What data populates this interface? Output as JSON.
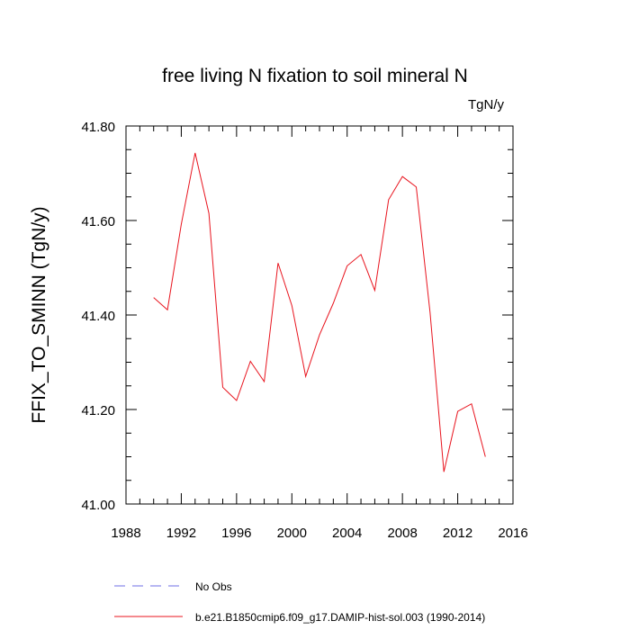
{
  "chart_data": {
    "type": "line",
    "title": "free living N fixation to soil mineral N",
    "units_label": "TgN/y",
    "ylabel": "FFIX_TO_SMINN  (TgN/y)",
    "xlabel": "",
    "xlim": [
      1988,
      2016
    ],
    "ylim": [
      41.0,
      41.8
    ],
    "x_ticks": [
      "1988",
      "1992",
      "1996",
      "2000",
      "2004",
      "2008",
      "2012",
      "2016"
    ],
    "y_ticks": [
      "41.00",
      "41.20",
      "41.40",
      "41.60",
      "41.80"
    ],
    "grid": false,
    "legend_position": "bottom",
    "legend": [
      {
        "label": "No Obs",
        "color": "#6f6fe6",
        "style": "dashed"
      },
      {
        "label": "b.e21.B1850cmip6.f09_g17.DAMIP-hist-sol.003 (1990-2014)",
        "color": "#e8141e",
        "style": "solid"
      }
    ],
    "series": [
      {
        "name": "b.e21.B1850cmip6.f09_g17.DAMIP-hist-sol.003 (1990-2014)",
        "color": "#e8141e",
        "x": [
          1990,
          1991,
          1992,
          1993,
          1994,
          1995,
          1996,
          1997,
          1998,
          1999,
          2000,
          2001,
          2002,
          2003,
          2004,
          2005,
          2006,
          2007,
          2008,
          2009,
          2010,
          2011,
          2012,
          2013,
          2014
        ],
        "y": [
          41.437,
          41.411,
          41.592,
          41.743,
          41.615,
          41.247,
          41.219,
          41.302,
          41.259,
          41.51,
          41.42,
          41.27,
          41.358,
          41.425,
          41.504,
          41.528,
          41.452,
          41.644,
          41.693,
          41.671,
          41.405,
          41.068,
          41.196,
          41.212,
          41.1
        ]
      }
    ]
  }
}
